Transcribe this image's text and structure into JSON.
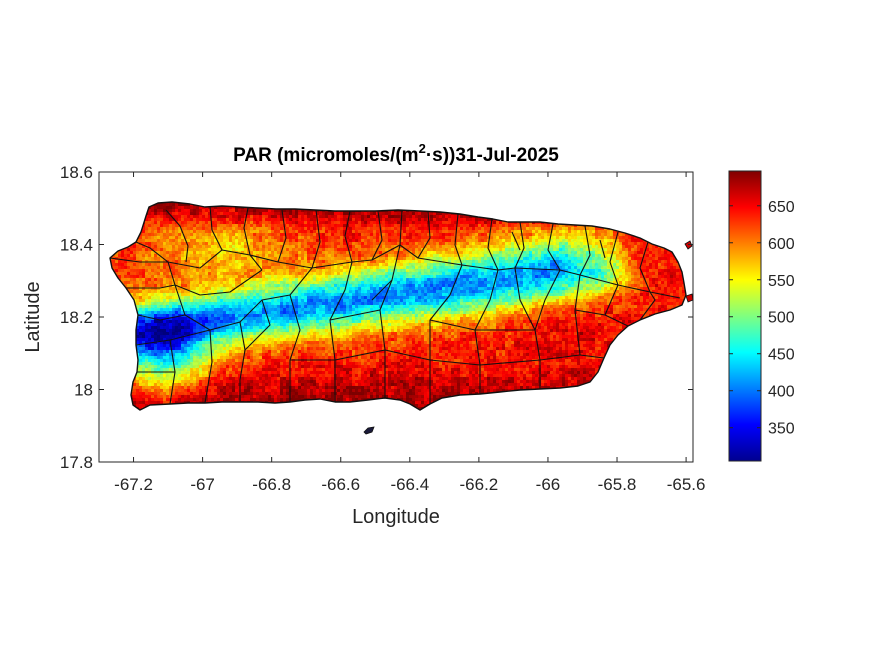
{
  "chart_data": {
    "type": "heatmap",
    "title": {
      "prefix": "PAR (micromoles/(m",
      "superscript": "2",
      "suffix": "·s))31-Jul-2025"
    },
    "xlabel": "Longitude",
    "ylabel": "Latitude",
    "xlim": [
      -67.3,
      -65.58
    ],
    "ylim": [
      17.8,
      18.6
    ],
    "xticks": [
      -67.2,
      -67,
      -66.8,
      -66.6,
      -66.4,
      -66.2,
      -66,
      -65.8,
      -65.6
    ],
    "xtick_labels": [
      "-67.2",
      "-67",
      "-66.8",
      "-66.6",
      "-66.4",
      "-66.2",
      "-66",
      "-65.8",
      "-65.6"
    ],
    "yticks": [
      17.8,
      18,
      18.2,
      18.4,
      18.6
    ],
    "ytick_labels": [
      "17.8",
      "18",
      "18.2",
      "18.4",
      "18.6"
    ],
    "colormap": "jet",
    "colorbar": {
      "min": 305,
      "max": 697,
      "ticks": [
        350,
        400,
        450,
        500,
        550,
        600,
        650
      ],
      "tick_labels": [
        "350",
        "400",
        "450",
        "500",
        "550",
        "600",
        "650"
      ]
    },
    "region": "Puerto Rico",
    "grid": false
  }
}
